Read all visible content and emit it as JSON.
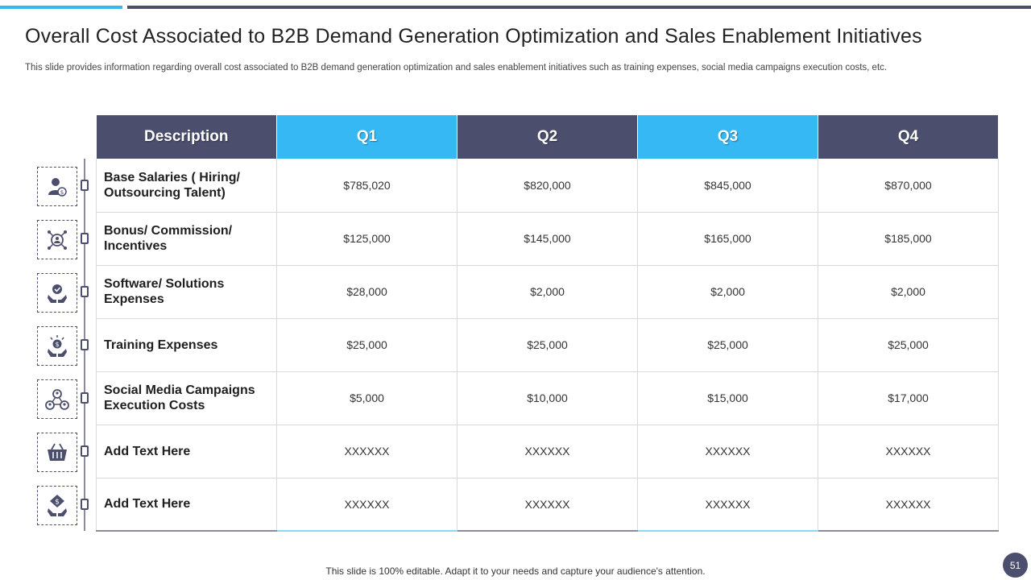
{
  "title": "Overall Cost Associated to B2B Demand Generation Optimization and Sales Enablement Initiatives",
  "subtitle": "This slide provides information regarding overall cost associated to B2B demand generation optimization and sales enablement initiatives such as training expenses, social media campaigns execution costs, etc.",
  "colors": {
    "accent_blue": "#36b7ee",
    "dark_navy": "#4c4e6e"
  },
  "table": {
    "headers": [
      "Description",
      "Q1",
      "Q2",
      "Q3",
      "Q4"
    ],
    "rows": [
      {
        "icon": "salary-person-icon",
        "description": "Base Salaries ( Hiring/ Outsourcing Talent)",
        "values": [
          "$785,020",
          "$820,000",
          "$845,000",
          "$870,000"
        ]
      },
      {
        "icon": "commission-network-icon",
        "description": "Bonus/ Commission/ Incentives",
        "values": [
          "$125,000",
          "$145,000",
          "$165,000",
          "$185,000"
        ]
      },
      {
        "icon": "solution-hands-icon",
        "description": "Software/ Solutions Expenses",
        "values": [
          "$28,000",
          "$2,000",
          "$2,000",
          "$2,000"
        ]
      },
      {
        "icon": "training-money-hands-icon",
        "description": "Training Expenses",
        "values": [
          "$25,000",
          "$25,000",
          "$25,000",
          "$25,000"
        ]
      },
      {
        "icon": "social-network-icon",
        "description": "Social Media Campaigns Execution Costs",
        "values": [
          "$5,000",
          "$10,000",
          "$15,000",
          "$17,000"
        ]
      },
      {
        "icon": "shopping-basket-icon",
        "description": "Add Text Here",
        "values": [
          "XXXXXX",
          "XXXXXX",
          "XXXXXX",
          "XXXXXX"
        ]
      },
      {
        "icon": "money-shield-icon",
        "description": "Add Text Here",
        "values": [
          "XXXXXX",
          "XXXXXX",
          "XXXXXX",
          "XXXXXX"
        ]
      }
    ]
  },
  "footer": "This slide is 100% editable. Adapt it to your needs and capture your audience's attention.",
  "page_number": "51"
}
